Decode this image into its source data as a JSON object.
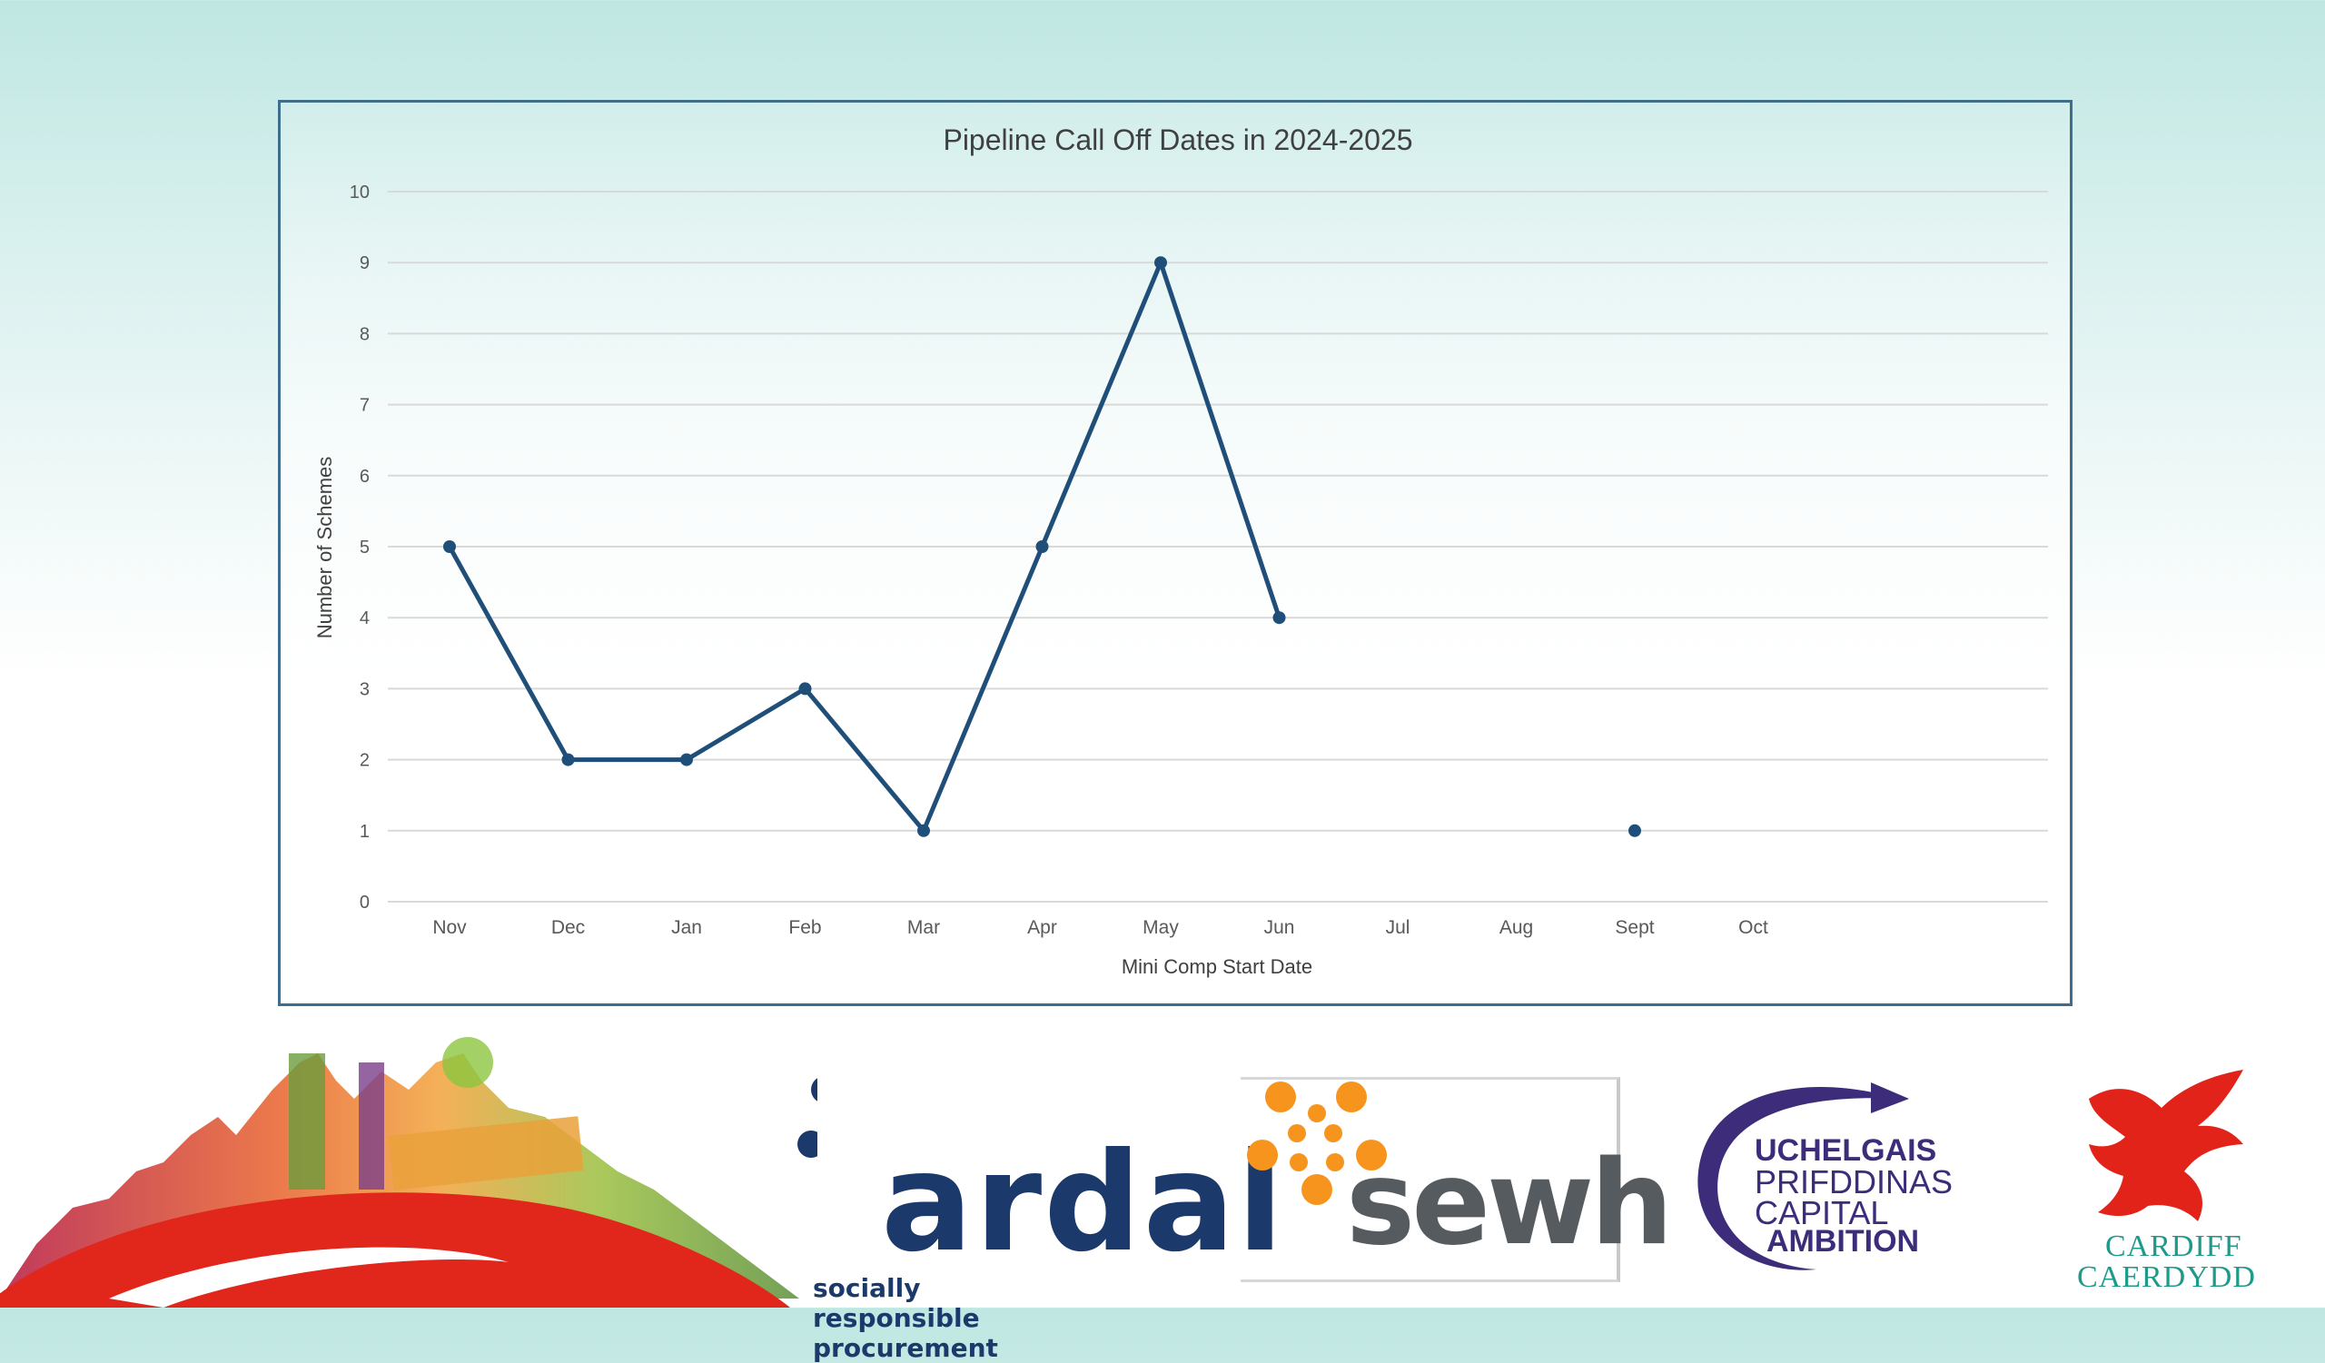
{
  "chart_data": {
    "type": "line",
    "title": "Pipeline Call Off Dates in 2024-2025",
    "xlabel": "Mini Comp Start Date",
    "ylabel": "Number of Schemes",
    "categories": [
      "Nov",
      "Dec",
      "Jan",
      "Feb",
      "Mar",
      "Apr",
      "May",
      "Jun",
      "Jul",
      "Aug",
      "Sept",
      "Oct"
    ],
    "yticks": [
      0,
      1,
      2,
      3,
      4,
      5,
      6,
      7,
      8,
      9,
      10
    ],
    "ylim": [
      0,
      10
    ],
    "grid": true,
    "legend": "none",
    "series": [
      {
        "values": [
          5,
          2,
          2,
          3,
          1,
          5,
          9,
          4,
          null,
          null,
          1,
          null
        ]
      }
    ],
    "line_color": "#1f4e79",
    "grid_color": "#d9d9d9"
  },
  "logos": {
    "ardal": {
      "name": "ardal",
      "tagline": "socially responsible procurement",
      "color": "#1b3a6b"
    },
    "sewh": {
      "name": "sewh",
      "dot_color": "#f7941d",
      "text_color": "#555b5e"
    },
    "capital_ambition": {
      "lines": [
        "UCHELGAIS",
        "PRIFDDINAS",
        "CAPITAL",
        "AMBITION"
      ],
      "color": "#3d2c7a"
    },
    "cardiff": {
      "lines": [
        "CARDIFF",
        "CAERDYDD"
      ],
      "dragon_color": "#e2231a",
      "text_color": "#1d9a8a"
    },
    "city_skyline": {
      "icon": "city-skyline-illustration-icon"
    }
  }
}
